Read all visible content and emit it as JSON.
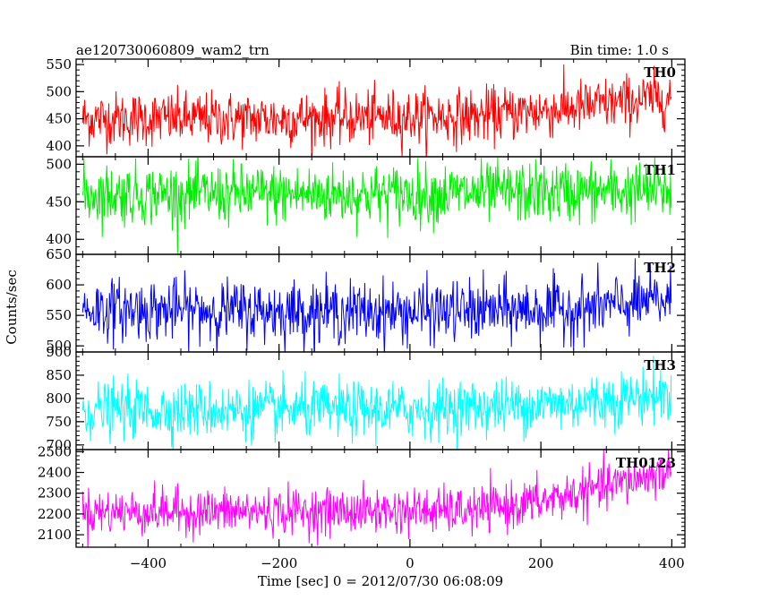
{
  "header": {
    "left": "ae120730060809_wam2_trn",
    "right": "Bin time: 1.0 s"
  },
  "chart_data": {
    "type": "line",
    "xlabel": "Time [sec] 0 = 2012/07/30 06:08:09",
    "ylabel": "Counts/sec",
    "xlim": [
      -510,
      420
    ],
    "xticks": [
      -400,
      -200,
      0,
      200,
      400
    ],
    "x_start": -500,
    "x_end": 399,
    "x_step": 1,
    "panels": [
      {
        "name": "TH0",
        "color": "#ff0000",
        "ylim": [
          380,
          560
        ],
        "yticks": [
          400,
          450,
          500,
          550
        ],
        "trend": [
          [
            -500,
            450
          ],
          [
            -200,
            450
          ],
          [
            100,
            455
          ],
          [
            250,
            470
          ],
          [
            399,
            490
          ]
        ],
        "noise_sigma": 25
      },
      {
        "name": "TH1",
        "color": "#00ee00",
        "ylim": [
          380,
          510
        ],
        "yticks": [
          400,
          450,
          500
        ],
        "trend": [
          [
            -500,
            460
          ],
          [
            0,
            460
          ],
          [
            399,
            465
          ]
        ],
        "noise_sigma": 20
      },
      {
        "name": "TH2",
        "color": "#0000ff",
        "ylim": [
          490,
          650
        ],
        "yticks": [
          500,
          550,
          600,
          650
        ],
        "trend": [
          [
            -500,
            560
          ],
          [
            0,
            555
          ],
          [
            250,
            560
          ],
          [
            399,
            575
          ]
        ],
        "noise_sigma": 25
      },
      {
        "name": "TH3",
        "color": "#00ffff",
        "ylim": [
          690,
          900
        ],
        "yticks": [
          700,
          750,
          800,
          850,
          900
        ],
        "trend": [
          [
            -500,
            775
          ],
          [
            0,
            775
          ],
          [
            250,
            790
          ],
          [
            399,
            810
          ]
        ],
        "noise_sigma": 30
      },
      {
        "name": "TH0123",
        "color": "#ff00ff",
        "ylim": [
          2040,
          2510
        ],
        "yticks": [
          2100,
          2200,
          2300,
          2400,
          2500
        ],
        "trend": [
          [
            -500,
            2210
          ],
          [
            100,
            2215
          ],
          [
            200,
            2260
          ],
          [
            300,
            2330
          ],
          [
            399,
            2410
          ]
        ],
        "noise_sigma": 55
      }
    ]
  }
}
